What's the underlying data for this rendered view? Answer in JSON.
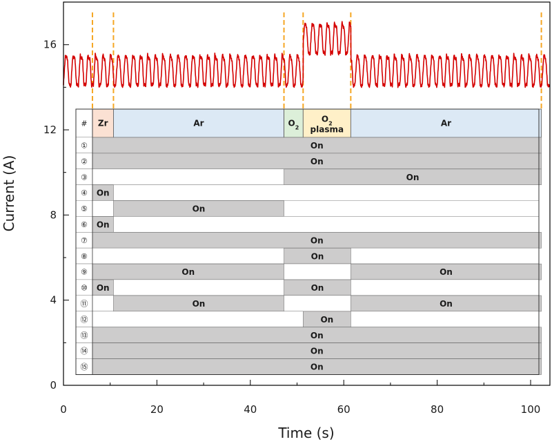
{
  "chart_data": {
    "type": "line",
    "xlabel": "Time (s)",
    "ylabel": "Current (A)",
    "xlim": [
      0,
      104
    ],
    "ylim": [
      0,
      18
    ],
    "xticks": [
      0,
      20,
      40,
      60,
      80,
      100
    ],
    "yticks": [
      0,
      4,
      8,
      12,
      16
    ],
    "series": [
      {
        "name": "current",
        "color": "#d40000",
        "baseline": {
          "low": 14.1,
          "high": 15.5,
          "period_s": 1.6
        },
        "segments": [
          {
            "from": 0,
            "to": 51.3,
            "low": 14.1,
            "high": 15.5
          },
          {
            "from": 51.3,
            "to": 61.5,
            "low": 15.6,
            "high": 17.0
          },
          {
            "from": 61.5,
            "to": 104,
            "low": 14.1,
            "high": 15.5
          }
        ]
      }
    ],
    "vlines": [
      6.2,
      10.7,
      47.2,
      51.3,
      61.5,
      102.3
    ],
    "vline_color": "#f5a623",
    "table": {
      "header_symbol": "#",
      "phases": [
        {
          "label": "Zr",
          "start": 6.2,
          "end": 10.7,
          "color": "#fbe1d3"
        },
        {
          "label": "Ar",
          "start": 10.7,
          "end": 47.2,
          "color": "#dce9f5"
        },
        {
          "label": "O",
          "sub": "2",
          "start": 47.2,
          "end": 51.3,
          "color": "#dcefd9"
        },
        {
          "label": "O",
          "sub": "2",
          "line2": "plasma",
          "start": 51.3,
          "end": 61.5,
          "color": "#fff0c8"
        },
        {
          "label": "Ar",
          "start": 61.5,
          "end": 102.3,
          "color": "#dce9f5"
        }
      ],
      "on_color": "#cdcccc",
      "rows": [
        {
          "label": "①",
          "on": [
            {
              "start": 6.2,
              "end": 102.3,
              "text": "On"
            }
          ]
        },
        {
          "label": "②",
          "on": [
            {
              "start": 6.2,
              "end": 102.3,
              "text": "On"
            }
          ]
        },
        {
          "label": "③",
          "on": [
            {
              "start": 47.2,
              "end": 102.3,
              "text": "On"
            }
          ]
        },
        {
          "label": "④",
          "on": [
            {
              "start": 6.2,
              "end": 10.7,
              "text": "On"
            }
          ]
        },
        {
          "label": "⑤",
          "on": [
            {
              "start": 10.7,
              "end": 47.2,
              "text": "On"
            }
          ]
        },
        {
          "label": "⑥",
          "on": [
            {
              "start": 6.2,
              "end": 10.7,
              "text": "On"
            }
          ]
        },
        {
          "label": "⑦",
          "on": [
            {
              "start": 6.2,
              "end": 102.3,
              "text": "On"
            }
          ]
        },
        {
          "label": "⑧",
          "on": [
            {
              "start": 47.2,
              "end": 61.5,
              "text": "On"
            }
          ]
        },
        {
          "label": "⑨",
          "on": [
            {
              "start": 6.2,
              "end": 47.2,
              "text": "On"
            },
            {
              "start": 61.5,
              "end": 102.3,
              "text": "On"
            }
          ]
        },
        {
          "label": "⑩",
          "on": [
            {
              "start": 6.2,
              "end": 10.7,
              "text": "On"
            },
            {
              "start": 47.2,
              "end": 61.5,
              "text": "On"
            }
          ]
        },
        {
          "label": "⑪",
          "on": [
            {
              "start": 10.7,
              "end": 47.2,
              "text": "On"
            },
            {
              "start": 61.5,
              "end": 102.3,
              "text": "On"
            }
          ]
        },
        {
          "label": "⑫",
          "on": [
            {
              "start": 51.3,
              "end": 61.5,
              "text": "On"
            }
          ]
        },
        {
          "label": "⑬",
          "on": [
            {
              "start": 6.2,
              "end": 102.3,
              "text": "On"
            }
          ]
        },
        {
          "label": "⑭",
          "on": [
            {
              "start": 6.2,
              "end": 102.3,
              "text": "On"
            }
          ]
        },
        {
          "label": "⑮",
          "on": [
            {
              "start": 6.2,
              "end": 102.3,
              "text": "On"
            }
          ]
        }
      ]
    }
  }
}
